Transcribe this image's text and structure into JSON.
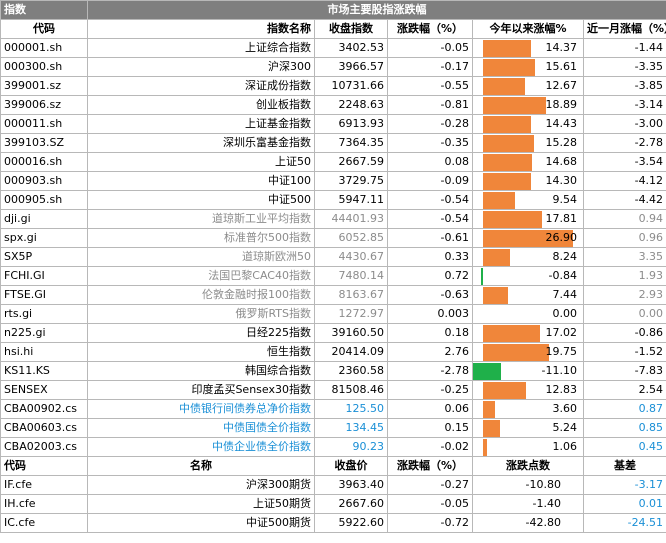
{
  "title_bar": {
    "left": "指数",
    "center": "市场主要股指涨跌幅"
  },
  "headers": [
    "代码",
    "指数名称",
    "收盘指数",
    "涨跌幅（%）",
    "今年以来涨幅%",
    "近一月涨幅（%）"
  ],
  "rows": [
    {
      "code": "000001.sh",
      "name": "上证综合指数",
      "close": "3402.53",
      "chg": "-0.05",
      "ytd": 14.37,
      "ytd_label": "14.37",
      "m1": "-1.44",
      "tone": "normal"
    },
    {
      "code": "000300.sh",
      "name": "沪深300",
      "close": "3966.57",
      "chg": "-0.17",
      "ytd": 15.61,
      "ytd_label": "15.61",
      "m1": "-3.35",
      "tone": "normal"
    },
    {
      "code": "399001.sz",
      "name": "深证成份指数",
      "close": "10731.66",
      "chg": "-0.55",
      "ytd": 12.67,
      "ytd_label": "12.67",
      "m1": "-3.85",
      "tone": "normal"
    },
    {
      "code": "399006.sz",
      "name": "创业板指数",
      "close": "2248.63",
      "chg": "-0.81",
      "ytd": 18.89,
      "ytd_label": "18.89",
      "m1": "-3.14",
      "tone": "normal"
    },
    {
      "code": "000011.sh",
      "name": "上证基金指数",
      "close": "6913.93",
      "chg": "-0.28",
      "ytd": 14.43,
      "ytd_label": "14.43",
      "m1": "-3.00",
      "tone": "normal"
    },
    {
      "code": "399103.SZ",
      "name": "深圳乐富基金指数",
      "close": "7364.35",
      "chg": "-0.35",
      "ytd": 15.28,
      "ytd_label": "15.28",
      "m1": "-2.78",
      "tone": "normal"
    },
    {
      "code": "000016.sh",
      "name": "上证50",
      "close": "2667.59",
      "chg": "0.08",
      "ytd": 14.68,
      "ytd_label": "14.68",
      "m1": "-3.54",
      "tone": "normal"
    },
    {
      "code": "000903.sh",
      "name": "中证100",
      "close": "3729.75",
      "chg": "-0.09",
      "ytd": 14.3,
      "ytd_label": "14.30",
      "m1": "-4.12",
      "tone": "normal"
    },
    {
      "code": "000905.sh",
      "name": "中证500",
      "close": "5947.11",
      "chg": "-0.54",
      "ytd": 9.54,
      "ytd_label": "9.54",
      "m1": "-4.42",
      "tone": "normal"
    },
    {
      "code": "dji.gi",
      "name": "道琼斯工业平均指数",
      "close": "44401.93",
      "chg": "-0.54",
      "ytd": 17.81,
      "ytd_label": "17.81",
      "m1": "0.94",
      "tone": "gray"
    },
    {
      "code": "spx.gi",
      "name": "标准普尔500指数",
      "close": "6052.85",
      "chg": "-0.61",
      "ytd": 26.9,
      "ytd_label": "26.90",
      "m1": "0.96",
      "tone": "gray"
    },
    {
      "code": "SX5P",
      "name": "道琼斯欧洲50",
      "close": "4430.67",
      "chg": "0.33",
      "ytd": 8.24,
      "ytd_label": "8.24",
      "m1": "3.35",
      "tone": "gray"
    },
    {
      "code": "FCHI.GI",
      "name": "法国巴黎CAC40指数",
      "close": "7480.14",
      "chg": "0.72",
      "ytd": -0.84,
      "ytd_label": "-0.84",
      "m1": "1.93",
      "tone": "gray"
    },
    {
      "code": "FTSE.GI",
      "name": "伦敦金融时报100指数",
      "close": "8163.67",
      "chg": "-0.63",
      "ytd": 7.44,
      "ytd_label": "7.44",
      "m1": "2.93",
      "tone": "gray"
    },
    {
      "code": "rts.gi",
      "name": "俄罗斯RTS指数",
      "close": "1272.97",
      "chg": "0.003",
      "ytd": 0.0,
      "ytd_label": "0.00",
      "m1": "0.00",
      "tone": "gray"
    },
    {
      "code": "n225.gi",
      "name": "日经225指数",
      "close": "39160.50",
      "chg": "0.18",
      "ytd": 17.02,
      "ytd_label": "17.02",
      "m1": "-0.86",
      "tone": "normal"
    },
    {
      "code": "hsi.hi",
      "name": "恒生指数",
      "close": "20414.09",
      "chg": "2.76",
      "ytd": 19.75,
      "ytd_label": "19.75",
      "m1": "-1.52",
      "tone": "normal"
    },
    {
      "code": "KS11.KS",
      "name": "韩国综合指数",
      "close": "2360.58",
      "chg": "-2.78",
      "ytd": -11.1,
      "ytd_label": "-11.10",
      "m1": "-7.83",
      "tone": "normal"
    },
    {
      "code": "SENSEX",
      "name": "印度孟买Sensex30指数",
      "close": "81508.46",
      "chg": "-0.25",
      "ytd": 12.83,
      "ytd_label": "12.83",
      "m1": "2.54",
      "tone": "normal"
    },
    {
      "code": "CBA00902.cs",
      "name": "中债银行间债券总净价指数",
      "close": "125.50",
      "chg": "0.06",
      "ytd": 3.6,
      "ytd_label": "3.60",
      "m1": "0.87",
      "tone": "blue"
    },
    {
      "code": "CBA00603.cs",
      "name": "中债国债全价指数",
      "close": "134.45",
      "chg": "0.15",
      "ytd": 5.24,
      "ytd_label": "5.24",
      "m1": "0.85",
      "tone": "blue"
    },
    {
      "code": "CBA02003.cs",
      "name": "中债企业债全价指数",
      "close": "90.23",
      "chg": "-0.02",
      "ytd": 1.06,
      "ytd_label": "1.06",
      "m1": "0.45",
      "tone": "blue"
    }
  ],
  "futures_headers": [
    "代码",
    "名称",
    "收盘价",
    "涨跌幅（%）",
    "涨跌点数",
    "基差"
  ],
  "futures": [
    {
      "code": "IF.cfe",
      "name": "沪深300期货",
      "close": "3963.40",
      "chg": "-0.27",
      "pts": "-10.80",
      "basis": "-3.17"
    },
    {
      "code": "IH.cfe",
      "name": "上证50期货",
      "close": "2667.60",
      "chg": "-0.05",
      "pts": "-1.40",
      "basis": "0.01"
    },
    {
      "code": "IC.cfe",
      "name": "中证500期货",
      "close": "5922.60",
      "chg": "-0.72",
      "pts": "-42.80",
      "basis": "-24.51"
    }
  ],
  "colors": {
    "bar_positive": "#f0863a",
    "bar_negative": "#1fb04a",
    "title_bg": "#7f7f7f",
    "gray_text": "#8c8c8c",
    "blue_text": "#1a8fd6"
  }
}
